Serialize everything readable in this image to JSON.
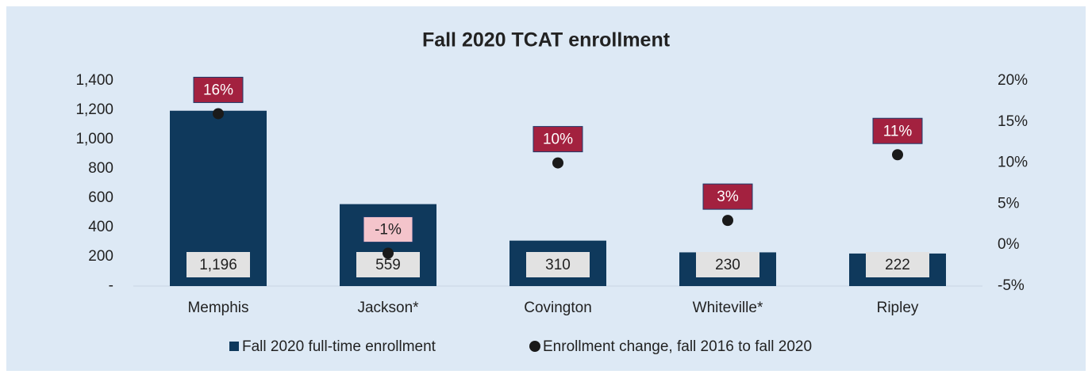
{
  "chart_data": {
    "type": "bar",
    "title": "Fall 2020 TCAT enrollment",
    "categories": [
      "Memphis",
      "Jackson*",
      "Covington",
      "Whiteville*",
      "Ripley"
    ],
    "series": [
      {
        "name": "Fall 2020 full-time enrollment",
        "type": "bar",
        "color": "#0f395c",
        "values": [
          1196,
          559,
          310,
          230,
          222
        ],
        "value_labels": [
          "1,196",
          "559",
          "310",
          "230",
          "222"
        ]
      },
      {
        "name": "Enrollment change, fall 2016 to fall 2020",
        "type": "scatter",
        "color": "#1a1a1a",
        "axis": "y2",
        "values": [
          16,
          -1,
          10,
          3,
          11
        ],
        "value_labels": [
          "16%",
          "-1%",
          "10%",
          "3%",
          "11%"
        ],
        "value_label_colors": [
          "#a3213f",
          "#f4c4cb",
          "#a3213f",
          "#a3213f",
          "#a3213f"
        ]
      }
    ],
    "ylim": [
      0,
      1400
    ],
    "yticks": [
      {
        "value": 0,
        "label": "-"
      },
      200,
      400,
      600,
      800,
      {
        "value": 1000,
        "label": "1,000"
      },
      {
        "value": 1200,
        "label": "1,200"
      },
      {
        "value": 1400,
        "label": "1,400"
      }
    ],
    "y2lim": [
      -5,
      20
    ],
    "y2ticks": [
      {
        "value": -5,
        "label": "-5%"
      },
      {
        "value": 0,
        "label": "0%"
      },
      {
        "value": 5,
        "label": "5%"
      },
      {
        "value": 10,
        "label": "10%"
      },
      {
        "value": 15,
        "label": "15%"
      },
      {
        "value": 20,
        "label": "20%"
      }
    ],
    "grid": false,
    "legend": "bottom"
  }
}
